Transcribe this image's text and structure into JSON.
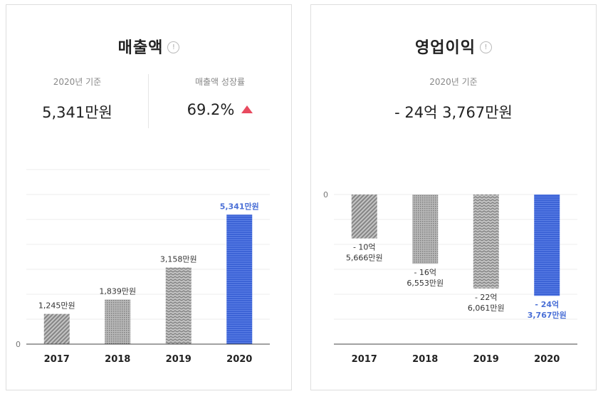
{
  "colors": {
    "highlight": "#3c63d6",
    "highlight_text": "#4a6fd6",
    "bar_gray": "#9b9b9b",
    "arrow": "#e84a5f",
    "grid": "#eeeeee"
  },
  "revenue": {
    "title": "매출액",
    "info": "!",
    "base_label": "2020년 기준",
    "base_value": "5,341만원",
    "growth_label": "매출액 성장률",
    "growth_value": "69.2%"
  },
  "operating": {
    "title": "영업이익",
    "info": "!",
    "base_label": "2020년 기준",
    "base_value": "- 24억 3,767만원"
  },
  "chart_data": [
    {
      "type": "bar",
      "title": "매출액",
      "unit": "만원",
      "categories": [
        "2017",
        "2018",
        "2019",
        "2020"
      ],
      "values": [
        1245,
        1839,
        3158,
        5341
      ],
      "data_labels": [
        [
          "1,245만원"
        ],
        [
          "1,839만원"
        ],
        [
          "3,158만원"
        ],
        [
          "5,341만원"
        ]
      ],
      "highlight_index": 3,
      "ylim": [
        0,
        7200
      ],
      "y_tick_label": "0",
      "patterns": [
        "diag",
        "dots",
        "zigzag",
        "hlines"
      ],
      "grid": true
    },
    {
      "type": "bar",
      "title": "영업이익",
      "unit": "만원",
      "categories": [
        "2017",
        "2018",
        "2019",
        "2020"
      ],
      "values": [
        -105666,
        -166553,
        -226061,
        -243767
      ],
      "data_labels": [
        [
          "- 10억",
          "5,666만원"
        ],
        [
          "- 16억",
          "6,553만원"
        ],
        [
          "- 22억",
          "6,061만원"
        ],
        [
          "- 24억",
          "3,767만원"
        ]
      ],
      "highlight_index": 3,
      "ylim": [
        -360000,
        0
      ],
      "y_tick_label": "0",
      "patterns": [
        "diag",
        "dots",
        "zigzag",
        "hlines"
      ],
      "grid": true
    }
  ]
}
